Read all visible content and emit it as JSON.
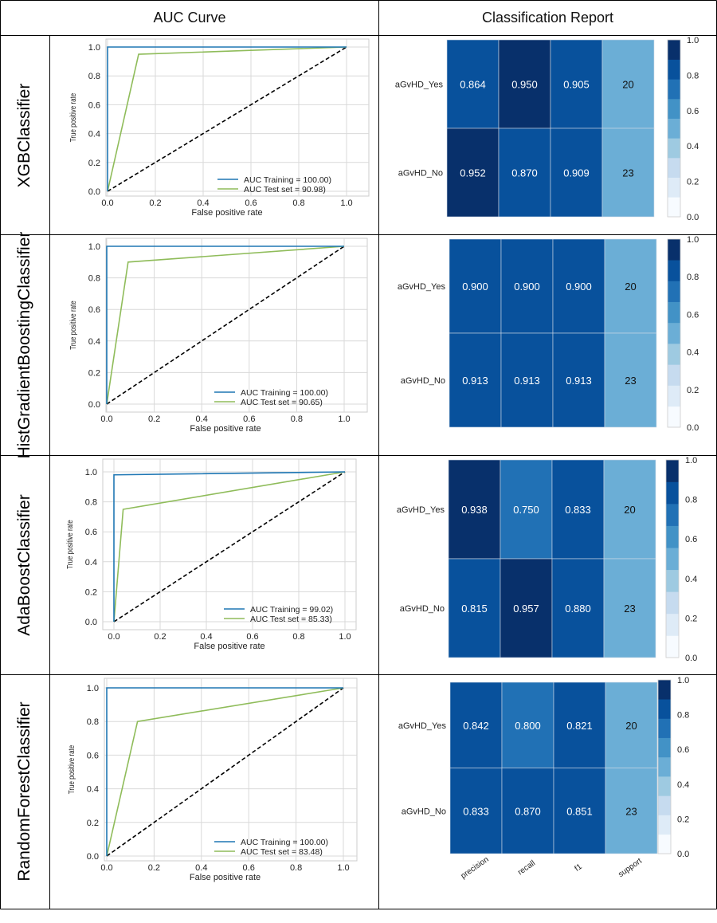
{
  "header": {
    "col1": "AUC Curve",
    "col2": "Classification Report"
  },
  "rows": [
    {
      "model": "XGBClassifier",
      "roc": {
        "xlabel": "False positive rate",
        "ylabel": "True positive rate",
        "train_label": "AUC Training = 100.00)",
        "test_label": "AUC Test set = 90.98)",
        "train_curve": [
          [
            0,
            0
          ],
          [
            0,
            1.0
          ],
          [
            1,
            1
          ]
        ],
        "test_curve": [
          [
            0,
            0
          ],
          [
            0.13,
            0.95
          ],
          [
            1,
            1
          ]
        ]
      },
      "report": {
        "rows": [
          "aGvHD_Yes",
          "aGvHD_No"
        ],
        "values": [
          [
            0.864,
            0.95,
            0.905,
            20
          ],
          [
            0.952,
            0.87,
            0.909,
            23
          ]
        ],
        "display": [
          [
            "0.864",
            "0.950",
            "0.905",
            "20"
          ],
          [
            "0.952",
            "0.870",
            "0.909",
            "23"
          ]
        ]
      }
    },
    {
      "model": "HistGradientBoostingClassifier",
      "roc": {
        "xlabel": "False positive rate",
        "ylabel": "True positive rate",
        "train_label": "AUC Training = 100.00)",
        "test_label": "AUC Test set = 90.65)",
        "train_curve": [
          [
            0,
            0
          ],
          [
            0,
            1.0
          ],
          [
            1,
            1
          ]
        ],
        "test_curve": [
          [
            0,
            0
          ],
          [
            0.09,
            0.9
          ],
          [
            1,
            1
          ]
        ]
      },
      "report": {
        "rows": [
          "aGvHD_Yes",
          "aGvHD_No"
        ],
        "values": [
          [
            0.9,
            0.9,
            0.9,
            20
          ],
          [
            0.913,
            0.913,
            0.913,
            23
          ]
        ],
        "display": [
          [
            "0.900",
            "0.900",
            "0.900",
            "20"
          ],
          [
            "0.913",
            "0.913",
            "0.913",
            "23"
          ]
        ]
      }
    },
    {
      "model": "AdaBoostClassifier",
      "roc": {
        "xlabel": "False positive rate",
        "ylabel": "True positive rate",
        "train_label": "AUC Training = 99.02)",
        "test_label": "AUC Test set = 85.33)",
        "train_curve": [
          [
            0,
            0
          ],
          [
            0,
            0.98
          ],
          [
            1,
            1
          ]
        ],
        "test_curve": [
          [
            0,
            0
          ],
          [
            0.04,
            0.75
          ],
          [
            1,
            1
          ]
        ]
      },
      "report": {
        "rows": [
          "aGvHD_Yes",
          "aGvHD_No"
        ],
        "values": [
          [
            0.938,
            0.75,
            0.833,
            20
          ],
          [
            0.815,
            0.957,
            0.88,
            23
          ]
        ],
        "display": [
          [
            "0.938",
            "0.750",
            "0.833",
            "20"
          ],
          [
            "0.815",
            "0.957",
            "0.880",
            "23"
          ]
        ]
      }
    },
    {
      "model": "RandomForestClassifier",
      "roc": {
        "xlabel": "False positive rate",
        "ylabel": "True positive rate",
        "train_label": "AUC Training = 100.00)",
        "test_label": "AUC Test set = 83.48)",
        "train_curve": [
          [
            0,
            0
          ],
          [
            0,
            1.0
          ],
          [
            1,
            1
          ]
        ],
        "test_curve": [
          [
            0,
            0
          ],
          [
            0.13,
            0.8
          ],
          [
            1,
            1
          ]
        ]
      },
      "report": {
        "rows": [
          "aGvHD_Yes",
          "aGvHD_No"
        ],
        "values": [
          [
            0.842,
            0.8,
            0.821,
            20
          ],
          [
            0.833,
            0.87,
            0.851,
            23
          ]
        ],
        "display": [
          [
            "0.842",
            "0.800",
            "0.821",
            "20"
          ],
          [
            "0.833",
            "0.870",
            "0.851",
            "23"
          ]
        ]
      }
    }
  ],
  "report_columns": [
    "precision",
    "recall",
    "f1",
    "support"
  ],
  "roc_ticks": [
    "0.0",
    "0.2",
    "0.4",
    "0.6",
    "0.8",
    "1.0"
  ],
  "colorbar_ticks": [
    "0.0",
    "0.2",
    "0.4",
    "0.6",
    "0.8",
    "1.0"
  ],
  "colors": {
    "train_line": "#1f77b4",
    "test_line": "#8fbc5a",
    "chance_line": "#000000",
    "grid": "#d9d9d9",
    "heat_scale": [
      "#f7fbff",
      "#deebf7",
      "#c6dbef",
      "#9ecae1",
      "#6baed6",
      "#4292c6",
      "#2171b5",
      "#08519c",
      "#08306b"
    ]
  },
  "chart_data": [
    {
      "type": "line",
      "title": "XGBClassifier",
      "xlabel": "False positive rate",
      "ylabel": "True positive rate",
      "xlim": [
        0,
        1
      ],
      "ylim": [
        0,
        1
      ],
      "series": [
        {
          "name": "AUC Training = 100.00)",
          "x": [
            0,
            0,
            1
          ],
          "y": [
            0,
            1.0,
            1
          ]
        },
        {
          "name": "AUC Test set = 90.98)",
          "x": [
            0,
            0.13,
            1
          ],
          "y": [
            0,
            0.95,
            1
          ]
        }
      ]
    },
    {
      "type": "heatmap",
      "title": "XGBClassifier",
      "rows": [
        "aGvHD_Yes",
        "aGvHD_No"
      ],
      "columns": [
        "precision",
        "recall",
        "f1",
        "support"
      ],
      "values": [
        [
          0.864,
          0.95,
          0.905,
          20
        ],
        [
          0.952,
          0.87,
          0.909,
          23
        ]
      ]
    },
    {
      "type": "line",
      "title": "HistGradientBoostingClassifier",
      "xlabel": "False positive rate",
      "ylabel": "True positive rate",
      "xlim": [
        0,
        1
      ],
      "ylim": [
        0,
        1
      ],
      "series": [
        {
          "name": "AUC Training = 100.00)",
          "x": [
            0,
            0,
            1
          ],
          "y": [
            0,
            1.0,
            1
          ]
        },
        {
          "name": "AUC Test set = 90.65)",
          "x": [
            0,
            0.09,
            1
          ],
          "y": [
            0,
            0.9,
            1
          ]
        }
      ]
    },
    {
      "type": "heatmap",
      "title": "HistGradientBoostingClassifier",
      "rows": [
        "aGvHD_Yes",
        "aGvHD_No"
      ],
      "columns": [
        "precision",
        "recall",
        "f1",
        "support"
      ],
      "values": [
        [
          0.9,
          0.9,
          0.9,
          20
        ],
        [
          0.913,
          0.913,
          0.913,
          23
        ]
      ]
    },
    {
      "type": "line",
      "title": "AdaBoostClassifier",
      "xlabel": "False positive rate",
      "ylabel": "True positive rate",
      "xlim": [
        0,
        1
      ],
      "ylim": [
        0,
        1
      ],
      "series": [
        {
          "name": "AUC Training = 99.02)",
          "x": [
            0,
            0,
            1
          ],
          "y": [
            0,
            0.98,
            1
          ]
        },
        {
          "name": "AUC Test set = 85.33)",
          "x": [
            0,
            0.04,
            1
          ],
          "y": [
            0,
            0.75,
            1
          ]
        }
      ]
    },
    {
      "type": "heatmap",
      "title": "AdaBoostClassifier",
      "rows": [
        "aGvHD_Yes",
        "aGvHD_No"
      ],
      "columns": [
        "precision",
        "recall",
        "f1",
        "support"
      ],
      "values": [
        [
          0.938,
          0.75,
          0.833,
          20
        ],
        [
          0.815,
          0.957,
          0.88,
          23
        ]
      ]
    },
    {
      "type": "line",
      "title": "RandomForestClassifier",
      "xlabel": "False positive rate",
      "ylabel": "True positive rate",
      "xlim": [
        0,
        1
      ],
      "ylim": [
        0,
        1
      ],
      "series": [
        {
          "name": "AUC Training = 100.00)",
          "x": [
            0,
            0,
            1
          ],
          "y": [
            0,
            1.0,
            1
          ]
        },
        {
          "name": "AUC Test set = 83.48)",
          "x": [
            0,
            0.13,
            1
          ],
          "y": [
            0,
            0.8,
            1
          ]
        }
      ]
    },
    {
      "type": "heatmap",
      "title": "RandomForestClassifier",
      "rows": [
        "aGvHD_Yes",
        "aGvHD_No"
      ],
      "columns": [
        "precision",
        "recall",
        "f1",
        "support"
      ],
      "values": [
        [
          0.842,
          0.8,
          0.821,
          20
        ],
        [
          0.833,
          0.87,
          0.851,
          23
        ]
      ]
    }
  ]
}
